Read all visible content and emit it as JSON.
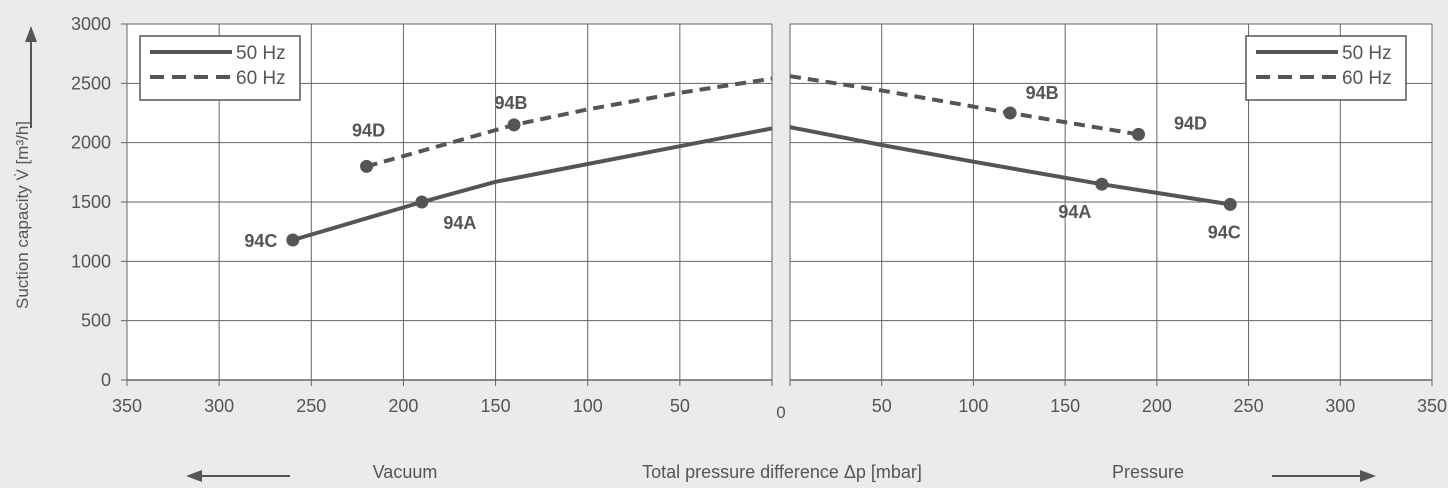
{
  "chart_data": [
    {
      "type": "line",
      "panel": "vacuum",
      "x_reversed": true,
      "xlim": [
        0,
        350
      ],
      "ylim": [
        0,
        3000
      ],
      "x_ticks": [
        "350",
        "300",
        "250",
        "200",
        "150",
        "100",
        "50"
      ],
      "y_ticks": [
        "0",
        "500",
        "1000",
        "1500",
        "2000",
        "2500",
        "3000"
      ],
      "legend": {
        "position": "top-left",
        "entries": [
          "50 Hz",
          "60 Hz"
        ]
      },
      "series": [
        {
          "name": "50 Hz",
          "style": "solid",
          "x": [
            260,
            190,
            150,
            100,
            50,
            0
          ],
          "y": [
            1180,
            1500,
            1670,
            1820,
            1970,
            2120
          ]
        },
        {
          "name": "60 Hz",
          "style": "dashed",
          "x": [
            220,
            140,
            100,
            50,
            0
          ],
          "y": [
            1800,
            2150,
            2280,
            2420,
            2540
          ]
        }
      ],
      "points": [
        {
          "label": "94C",
          "x": 260,
          "y": 1180,
          "series": "50 Hz"
        },
        {
          "label": "94A",
          "x": 190,
          "y": 1500,
          "series": "50 Hz"
        },
        {
          "label": "94D",
          "x": 220,
          "y": 1800,
          "series": "60 Hz"
        },
        {
          "label": "94B",
          "x": 140,
          "y": 2150,
          "series": "60 Hz"
        }
      ],
      "grid": true
    },
    {
      "type": "line",
      "panel": "pressure",
      "x_reversed": false,
      "xlim": [
        0,
        350
      ],
      "ylim": [
        0,
        3000
      ],
      "x_ticks": [
        "50",
        "100",
        "150",
        "200",
        "250",
        "300",
        "350"
      ],
      "legend": {
        "position": "top-right",
        "entries": [
          "50 Hz",
          "60 Hz"
        ]
      },
      "series": [
        {
          "name": "50 Hz",
          "style": "solid",
          "x": [
            0,
            50,
            100,
            170,
            240
          ],
          "y": [
            2130,
            1980,
            1840,
            1650,
            1480
          ]
        },
        {
          "name": "60 Hz",
          "style": "dashed",
          "x": [
            0,
            50,
            120,
            190
          ],
          "y": [
            2560,
            2440,
            2250,
            2070
          ]
        }
      ],
      "points": [
        {
          "label": "94A",
          "x": 170,
          "y": 1650,
          "series": "50 Hz"
        },
        {
          "label": "94C",
          "x": 240,
          "y": 1480,
          "series": "50 Hz"
        },
        {
          "label": "94B",
          "x": 120,
          "y": 2250,
          "series": "60 Hz"
        },
        {
          "label": "94D",
          "x": 190,
          "y": 2070,
          "series": "60 Hz"
        }
      ],
      "grid": true
    }
  ],
  "labels": {
    "ylabel": "Suction capacity V̇ [m³/h]",
    "zero_label": "0",
    "left_region": "Vacuum",
    "xlabel": "Total pressure difference Δp [mbar]",
    "right_region": "Pressure"
  },
  "colors": {
    "background": "#ebebeb",
    "plot_bg": "#ffffff",
    "line": "#555555",
    "grid": "#666666",
    "text": "#555555"
  }
}
